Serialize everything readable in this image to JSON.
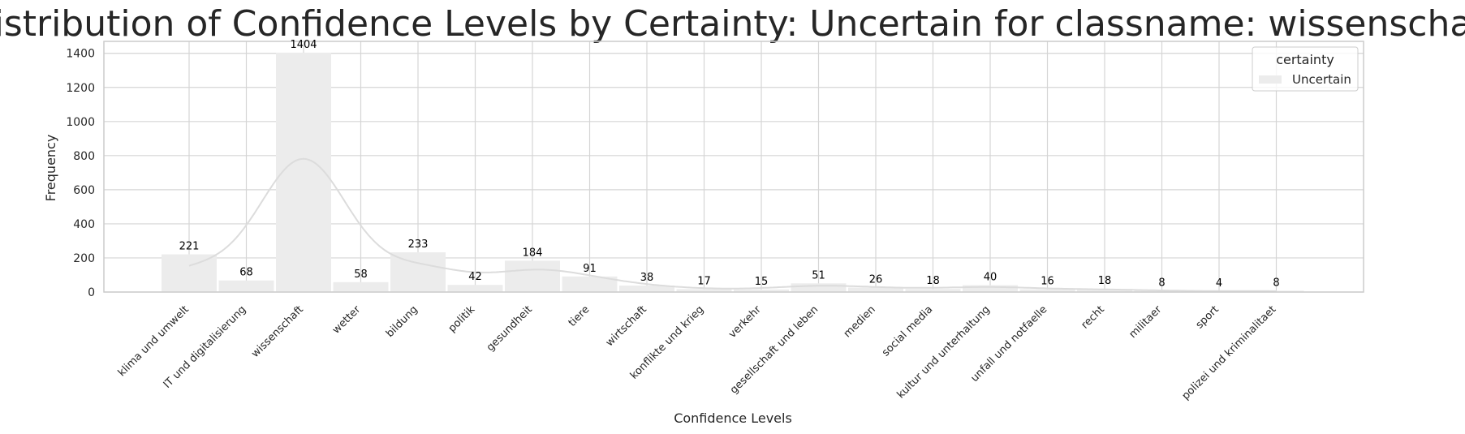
{
  "chart_data": {
    "type": "bar",
    "title": "Distribution of Confidence Levels by Certainty: Uncertain for classname: wissenschaft",
    "xlabel": "Confidence Levels",
    "ylabel": "Frequency",
    "ylim": [
      0,
      1470
    ],
    "yticks": [
      0,
      200,
      400,
      600,
      800,
      1000,
      1200,
      1400
    ],
    "categories": [
      "klima und umwelt",
      "IT und digitalisierung",
      "wissenschaft",
      "wetter",
      "bildung",
      "politik",
      "gesundheit",
      "tiere",
      "wirtschaft",
      "konflikte und krieg",
      "verkehr",
      "gesellschaft und leben",
      "medien",
      "social media",
      "kultur und unterhaltung",
      "unfall und notfaelle",
      "recht",
      "militaer",
      "sport",
      "polizei und kriminalitaet"
    ],
    "series": [
      {
        "name": "Uncertain",
        "values": [
          221,
          68,
          1404,
          58,
          233,
          42,
          184,
          91,
          38,
          17,
          15,
          51,
          26,
          18,
          40,
          16,
          18,
          8,
          4,
          8
        ]
      }
    ],
    "kde_curve": true,
    "grid": true,
    "legend": {
      "title": "certainty",
      "placement": "top-right"
    },
    "colors": {
      "bar": "#ececec",
      "kde": "#dcdcdc",
      "grid": "#d5d5d5",
      "spine": "#cccccc",
      "text": "#262626"
    }
  }
}
